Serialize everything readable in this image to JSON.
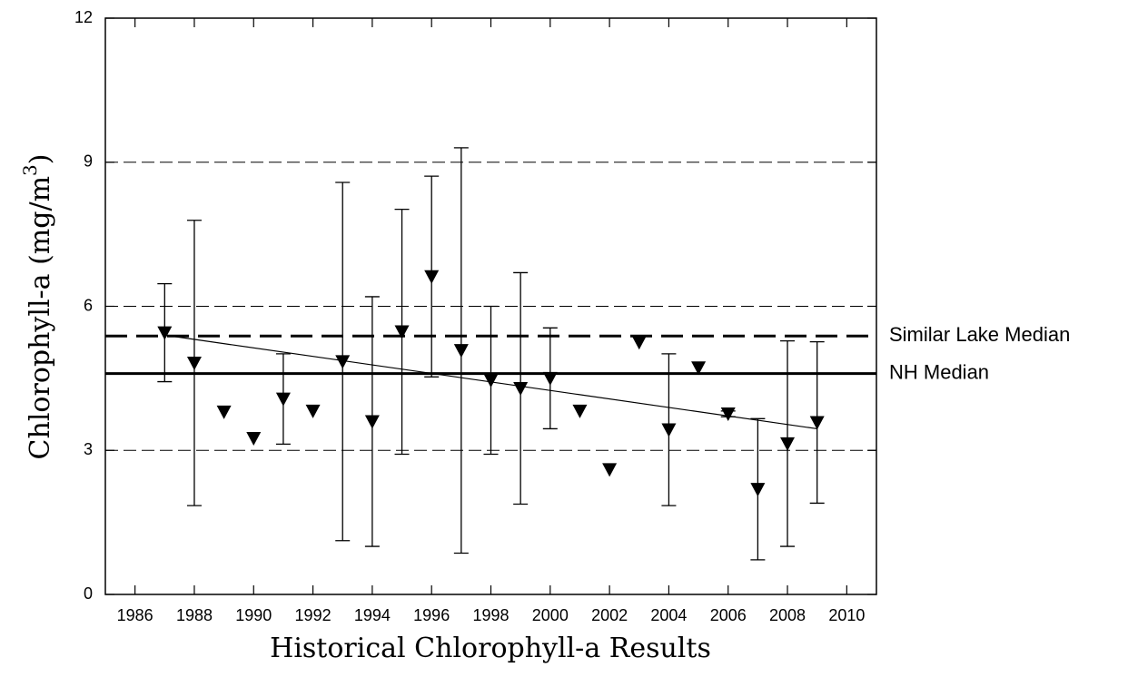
{
  "chart_data": {
    "type": "errorbar",
    "xlabel": "Historical Chlorophyll-a Results",
    "ylabel": {
      "text": "Chlorophyll-a (mg/m",
      "sup": "3",
      "end": ")"
    },
    "x": [
      1987,
      1988,
      1989,
      1990,
      1991,
      1992,
      1993,
      1994,
      1995,
      1996,
      1997,
      1998,
      1999,
      2000,
      2001,
      2002,
      2003,
      2004,
      2005,
      2006,
      2007,
      2008,
      2009
    ],
    "values": [
      5.45,
      4.82,
      3.8,
      3.25,
      4.07,
      3.82,
      4.85,
      3.6,
      5.47,
      6.62,
      5.08,
      4.46,
      4.29,
      4.5,
      3.82,
      2.6,
      5.25,
      3.43,
      4.72,
      3.76,
      2.19,
      3.14,
      3.58
    ],
    "errors": [
      1.02,
      2.97,
      null,
      null,
      0.94,
      null,
      3.73,
      2.6,
      2.55,
      2.09,
      4.22,
      1.54,
      2.41,
      1.05,
      null,
      null,
      null,
      1.58,
      null,
      0.06,
      1.47,
      2.14,
      1.68
    ],
    "color": "#000000",
    "trend": {
      "x": [
        1987,
        2009
      ],
      "values": [
        5.4,
        3.45
      ]
    },
    "reference_lines": [
      {
        "label": "Similar Lake Median",
        "value": 5.38,
        "style": "dashed"
      },
      {
        "label": "NH Median",
        "value": 4.6,
        "style": "solid"
      }
    ],
    "xlim": [
      1985,
      2011
    ],
    "xticks": [
      1986,
      1988,
      1990,
      1992,
      1994,
      1996,
      1998,
      2000,
      2002,
      2004,
      2006,
      2008,
      2010
    ],
    "ylim": [
      0,
      12
    ],
    "yticks": [
      0,
      3,
      6,
      9,
      12
    ],
    "grid": true
  }
}
